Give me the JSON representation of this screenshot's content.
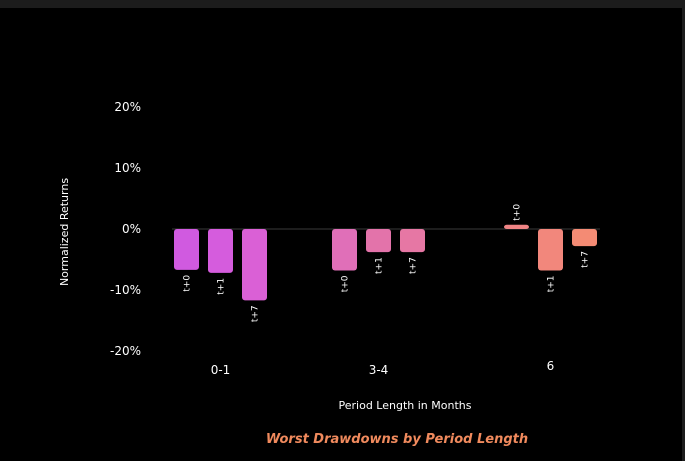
{
  "chart_data": {
    "type": "bar",
    "title": "Worst Drawdowns by Period Length",
    "xlabel": "Period Length in Months",
    "ylabel": "Normalized Returns",
    "ylim": [
      -0.2,
      0.2
    ],
    "yticks": [
      {
        "value": 0.2,
        "label": "20%"
      },
      {
        "value": 0.1,
        "label": "10%"
      },
      {
        "value": 0.0,
        "label": "0%"
      },
      {
        "value": -0.1,
        "label": "-10%"
      },
      {
        "value": -0.2,
        "label": "-20%"
      }
    ],
    "grid": false,
    "groups": [
      {
        "category": "0-1",
        "bars": [
          {
            "label": "t+0",
            "value": -0.067,
            "color": "#d05ae0"
          },
          {
            "label": "t+1",
            "value": -0.072,
            "color": "#d55cdd"
          },
          {
            "label": "t+7",
            "value": -0.117,
            "color": "#da60d6"
          }
        ]
      },
      {
        "category": "3-4",
        "bars": [
          {
            "label": "t+0",
            "value": -0.068,
            "color": "#e06fb8"
          },
          {
            "label": "t+1",
            "value": -0.038,
            "color": "#e373aa"
          },
          {
            "label": "t+7",
            "value": -0.038,
            "color": "#e677a4"
          }
        ]
      },
      {
        "category": "6",
        "bars": [
          {
            "label": "t+0",
            "value": 0.007,
            "color": "#ef8485"
          },
          {
            "label": "t+1",
            "value": -0.068,
            "color": "#f2877c"
          },
          {
            "label": "t+7",
            "value": -0.028,
            "color": "#f48b74"
          }
        ]
      }
    ]
  }
}
